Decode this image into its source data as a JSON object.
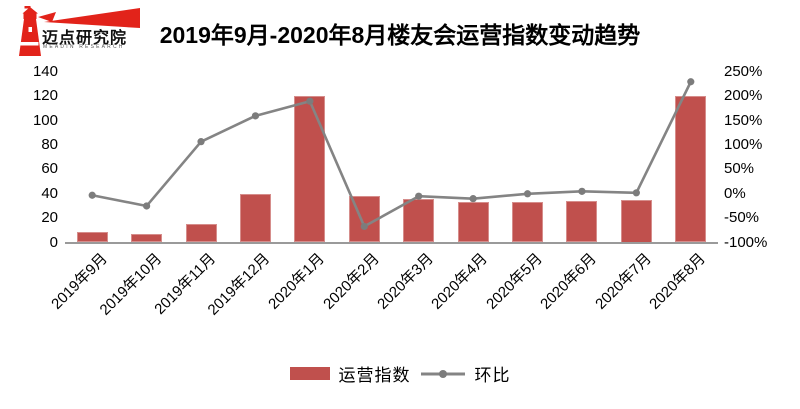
{
  "logo": {
    "brand": "迈点研究院",
    "subtext": "MEADIN RESEARCH",
    "color": "#e2231a"
  },
  "chart_data": {
    "type": "combo",
    "title": "2019年9月-2020年8月楼友会运营指数变动趋势",
    "categories": [
      "2019年9月",
      "2019年10月",
      "2019年11月",
      "2019年12月",
      "2020年1月",
      "2020年2月",
      "2020年3月",
      "2020年4月",
      "2020年5月",
      "2020年6月",
      "2020年7月",
      "2020年8月"
    ],
    "series": [
      {
        "name": "运营指数",
        "type": "bar",
        "axis": "left",
        "color": "#C0504D",
        "values": [
          9,
          7,
          15,
          40,
          120,
          38,
          36,
          33,
          33,
          34,
          35,
          120
        ]
      },
      {
        "name": "环比",
        "type": "line",
        "axis": "right",
        "color": "#848484",
        "marker_color": "#7c7c7c",
        "unit": "%",
        "values": [
          -3,
          -25,
          107,
          160,
          190,
          -67,
          -5,
          -10,
          0,
          5,
          2,
          230
        ]
      }
    ],
    "left_axis": {
      "min": 0,
      "max": 140,
      "step": 20,
      "suffix": ""
    },
    "right_axis": {
      "min": -100,
      "max": 250,
      "step": 50,
      "suffix": "%"
    },
    "grid": false,
    "legend_position": "bottom",
    "axis_line_color": "#9a9a9a"
  }
}
